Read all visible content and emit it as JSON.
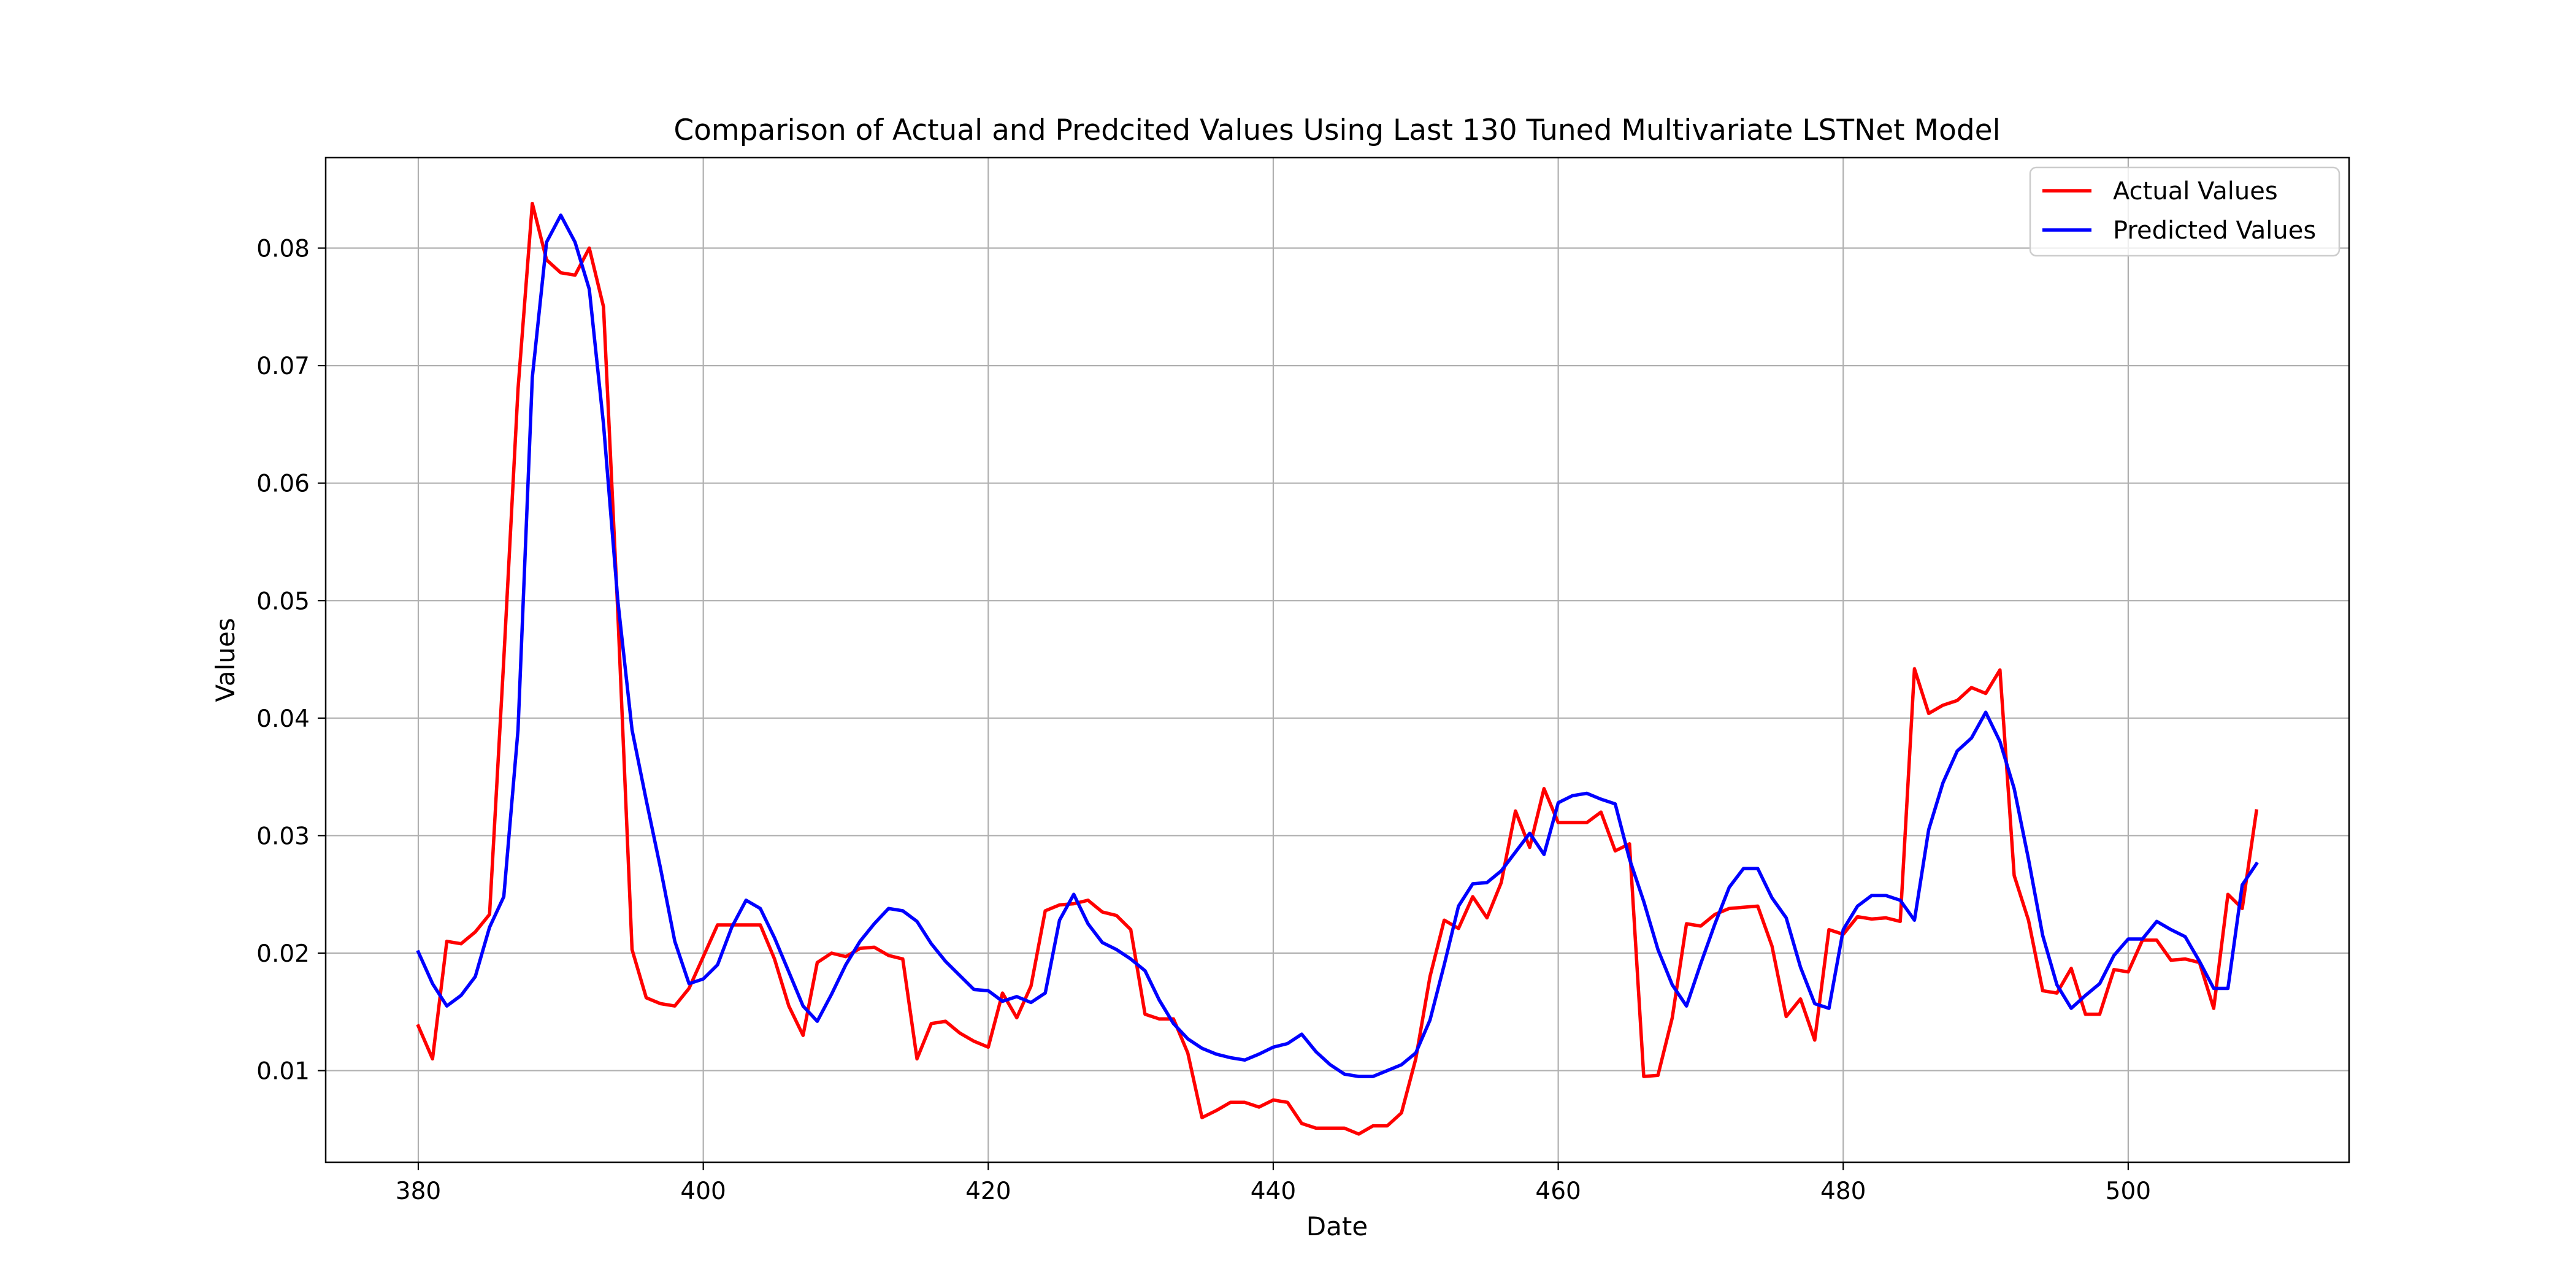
{
  "chart_data": {
    "type": "line",
    "title": "Comparison of Actual and Predcited Values Using Last 130 Tuned Multivariate LSTNet Model",
    "xlabel": "Date",
    "ylabel": "Values",
    "xlim": [
      373.5,
      515.5
    ],
    "ylim": [
      0.0022,
      0.0877
    ],
    "xticks": [
      380,
      400,
      420,
      440,
      460,
      480,
      500
    ],
    "yticks": [
      0.01,
      0.02,
      0.03,
      0.04,
      0.05,
      0.06,
      0.07,
      0.08
    ],
    "grid": true,
    "legend_position": "top-right",
    "x_start": 380,
    "series": [
      {
        "name": "Actual Values",
        "color": "#ff0000",
        "values": [
          0.0138,
          0.011,
          0.021,
          0.0208,
          0.0218,
          0.0233,
          0.045,
          0.068,
          0.0838,
          0.079,
          0.0779,
          0.0777,
          0.08,
          0.075,
          0.049,
          0.0203,
          0.0162,
          0.0157,
          0.0155,
          0.017,
          0.0197,
          0.0224,
          0.0224,
          0.0224,
          0.0224,
          0.0195,
          0.0155,
          0.013,
          0.0192,
          0.02,
          0.0197,
          0.0204,
          0.0205,
          0.0198,
          0.0195,
          0.011,
          0.014,
          0.0142,
          0.0132,
          0.0125,
          0.012,
          0.0166,
          0.0145,
          0.0172,
          0.0236,
          0.0241,
          0.0242,
          0.0245,
          0.0235,
          0.0232,
          0.022,
          0.0148,
          0.0144,
          0.0144,
          0.0115,
          0.006,
          0.0066,
          0.0073,
          0.0073,
          0.0069,
          0.0075,
          0.0073,
          0.0055,
          0.0051,
          0.0051,
          0.0051,
          0.0046,
          0.0053,
          0.0053,
          0.0064,
          0.011,
          0.018,
          0.0228,
          0.0221,
          0.0248,
          0.023,
          0.026,
          0.0321,
          0.029,
          0.034,
          0.0311,
          0.0311,
          0.0311,
          0.032,
          0.0287,
          0.0293,
          0.0095,
          0.0096,
          0.0145,
          0.0225,
          0.0223,
          0.0233,
          0.0238,
          0.0239,
          0.024,
          0.0206,
          0.0146,
          0.0161,
          0.0126,
          0.022,
          0.0216,
          0.0231,
          0.0229,
          0.023,
          0.0227,
          0.0442,
          0.0404,
          0.0411,
          0.0415,
          0.0426,
          0.0421,
          0.0441,
          0.0266,
          0.0228,
          0.0168,
          0.0166,
          0.0187,
          0.0148,
          0.0148,
          0.0186,
          0.0184,
          0.0211,
          0.0211,
          0.0194,
          0.0195,
          0.0192,
          0.0153,
          0.025,
          0.0238,
          0.0321
        ]
      },
      {
        "name": "Predicted Values",
        "color": "#0000ff",
        "values": [
          0.0201,
          0.0174,
          0.0155,
          0.0164,
          0.018,
          0.0222,
          0.0248,
          0.039,
          0.069,
          0.0805,
          0.0828,
          0.0805,
          0.0765,
          0.065,
          0.05,
          0.039,
          0.033,
          0.0272,
          0.021,
          0.0174,
          0.0178,
          0.019,
          0.0222,
          0.0245,
          0.0238,
          0.0213,
          0.0184,
          0.0155,
          0.0142,
          0.0165,
          0.019,
          0.021,
          0.0225,
          0.0238,
          0.0236,
          0.0227,
          0.0208,
          0.0193,
          0.0181,
          0.0169,
          0.0168,
          0.0159,
          0.0163,
          0.0158,
          0.0166,
          0.0228,
          0.025,
          0.0225,
          0.0209,
          0.0203,
          0.0195,
          0.0185,
          0.016,
          0.014,
          0.0127,
          0.0119,
          0.0114,
          0.0111,
          0.0109,
          0.0114,
          0.012,
          0.0123,
          0.0131,
          0.0116,
          0.0105,
          0.0097,
          0.0095,
          0.0095,
          0.01,
          0.0105,
          0.0115,
          0.0143,
          0.019,
          0.024,
          0.0259,
          0.026,
          0.027,
          0.0286,
          0.0302,
          0.0284,
          0.0328,
          0.0334,
          0.0336,
          0.0331,
          0.0327,
          0.028,
          0.0244,
          0.0203,
          0.0173,
          0.0155,
          0.0191,
          0.0225,
          0.0256,
          0.0272,
          0.0272,
          0.0247,
          0.023,
          0.0188,
          0.0157,
          0.0153,
          0.022,
          0.024,
          0.0249,
          0.0249,
          0.0245,
          0.0228,
          0.0305,
          0.0345,
          0.0372,
          0.0383,
          0.0405,
          0.038,
          0.034,
          0.028,
          0.0215,
          0.0173,
          0.0153,
          0.0164,
          0.0174,
          0.0198,
          0.0212,
          0.0212,
          0.0227,
          0.022,
          0.0214,
          0.0193,
          0.017,
          0.017,
          0.0258,
          0.0276
        ]
      }
    ]
  }
}
